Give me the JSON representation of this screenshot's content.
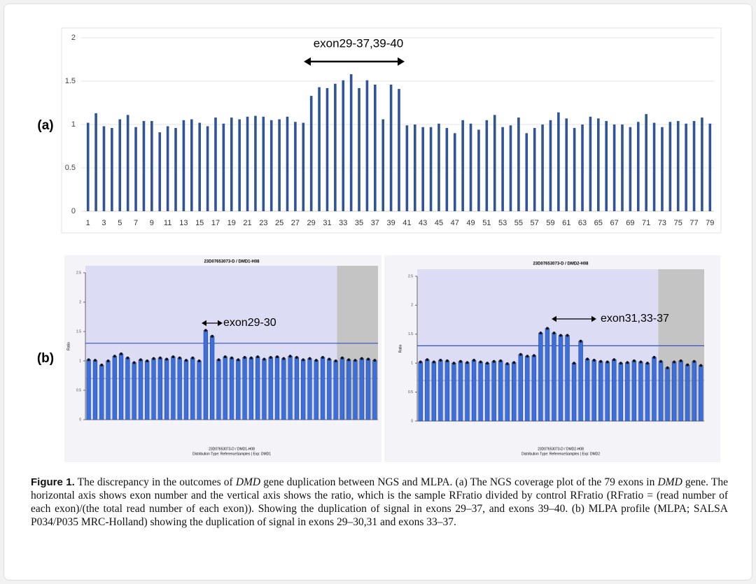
{
  "chart_data": [
    {
      "type": "bar",
      "annotation": "exon29-37,39-40",
      "color": "#2f5597",
      "categories": [
        "1",
        null,
        "3",
        null,
        "5",
        null,
        "7",
        null,
        "9",
        null,
        "11",
        null,
        "13",
        null,
        "15",
        null,
        "17",
        null,
        "19",
        null,
        "21",
        null,
        "23",
        null,
        "25",
        null,
        "27",
        null,
        "29",
        null,
        "31",
        null,
        "33",
        null,
        "35",
        null,
        "37",
        null,
        "39",
        null,
        "41",
        null,
        "43",
        null,
        "45",
        null,
        "47",
        null,
        "49",
        null,
        "51",
        null,
        "53",
        null,
        "55",
        null,
        "57",
        null,
        "59",
        null,
        "61",
        null,
        "63",
        null,
        "65",
        null,
        "67",
        null,
        "69",
        null,
        "71",
        null,
        "73",
        null,
        "75",
        null,
        "77",
        null,
        "79"
      ],
      "values": [
        1.02,
        1.13,
        0.98,
        0.96,
        1.06,
        1.11,
        0.97,
        1.04,
        1.04,
        0.91,
        0.98,
        0.96,
        1.05,
        1.06,
        1.02,
        0.98,
        1.08,
        1.01,
        1.08,
        1.06,
        1.09,
        1.1,
        1.09,
        1.05,
        1.06,
        1.09,
        1.03,
        1.02,
        1.33,
        1.43,
        1.42,
        1.47,
        1.51,
        1.58,
        1.42,
        1.51,
        1.46,
        1.06,
        1.46,
        1.41,
        0.99,
        1.0,
        0.97,
        0.97,
        1.01,
        0.96,
        0.9,
        1.05,
        1.01,
        0.94,
        1.05,
        1.11,
        0.97,
        0.99,
        1.08,
        0.9,
        0.96,
        1.0,
        1.05,
        1.14,
        1.07,
        0.96,
        1.0,
        1.09,
        1.07,
        1.04,
        1.0,
        1.0,
        0.97,
        1.03,
        1.12,
        1.02,
        0.97,
        1.03,
        1.04,
        1.01,
        1.04,
        1.08,
        1.01
      ],
      "ylim": [
        0,
        2
      ],
      "yticks": [
        0,
        0.5,
        1,
        1.5,
        2
      ],
      "grid": true
    },
    {
      "type": "bar",
      "title": "23D07653073-D / DMD1-H08",
      "y_label": "Ratio",
      "annotation": "exon29-30",
      "color": "#3d6fd9",
      "footer": [
        "23D07653073-D / DMD1-H08",
        "Distribution Type: ReferenceSamples | Exp: DMD1"
      ],
      "values": [
        1.02,
        1.01,
        0.93,
        1.0,
        1.08,
        1.12,
        1.05,
        0.97,
        1.02,
        1.0,
        1.04,
        1.05,
        1.03,
        1.07,
        1.05,
        1.01,
        1.05,
        1.0,
        1.52,
        1.42,
        1.02,
        1.07,
        1.05,
        1.02,
        1.06,
        1.05,
        1.07,
        1.03,
        1.06,
        1.07,
        1.04,
        1.08,
        1.06,
        1.02,
        1.04,
        1.01,
        1.06,
        1.03,
        1.0,
        1.05,
        1.02,
        1.01,
        1.04,
        1.03,
        1.01
      ],
      "reference_lines": [
        1.3,
        0.7
      ],
      "ylim": [
        0,
        2.5
      ],
      "yticks": [
        0,
        0.5,
        1,
        1.5,
        2,
        2.5
      ]
    },
    {
      "type": "bar",
      "title": "23D07653073-D / DMD2-H08",
      "y_label": "Ratio",
      "annotation": "exon31,33-37",
      "color": "#3d6fd9",
      "footer": [
        "23D07653073-D / DMD2-H08",
        "Distribution Type: ReferenceSamples | Exp: DMD2"
      ],
      "values": [
        1.02,
        1.06,
        1.02,
        1.05,
        1.04,
        1.0,
        1.03,
        1.01,
        1.05,
        1.02,
        1.0,
        1.03,
        1.04,
        0.99,
        1.01,
        1.15,
        1.12,
        1.13,
        1.52,
        1.6,
        1.52,
        1.48,
        1.48,
        1.0,
        1.38,
        1.07,
        1.05,
        1.03,
        1.02,
        1.06,
        1.0,
        1.01,
        1.04,
        1.02,
        1.0,
        1.1,
        1.03,
        0.92,
        1.02,
        1.04,
        0.97,
        1.03,
        0.96
      ],
      "reference_lines": [
        1.3,
        0.7
      ],
      "ylim": [
        0,
        2.5
      ],
      "yticks": [
        0,
        0.5,
        1,
        1.5,
        2,
        2.5
      ]
    }
  ],
  "panel_labels": [
    "(a)",
    "(b)"
  ],
  "caption": {
    "label": "Figure 1.",
    "parts": [
      " The discrepancy in the outcomes of ",
      "DMD",
      " gene duplication between NGS and MLPA. (a) The NGS coverage plot of the 79 exons in ",
      "DMD",
      " gene. The horizontal axis shows exon number and the vertical axis shows the ratio, which is the sample RFratio divided by control RFratio (RFratio = (read number of each exon)/(the total read number of each exon)). Showing the duplication of signal in exons 29–37, and exons 39–40. (b) MLPA profile (MLPA; SALSA P034/P035 MRC-Holland) showing the duplication of signal in exons 29–30,31 and exons 33–37."
    ]
  }
}
